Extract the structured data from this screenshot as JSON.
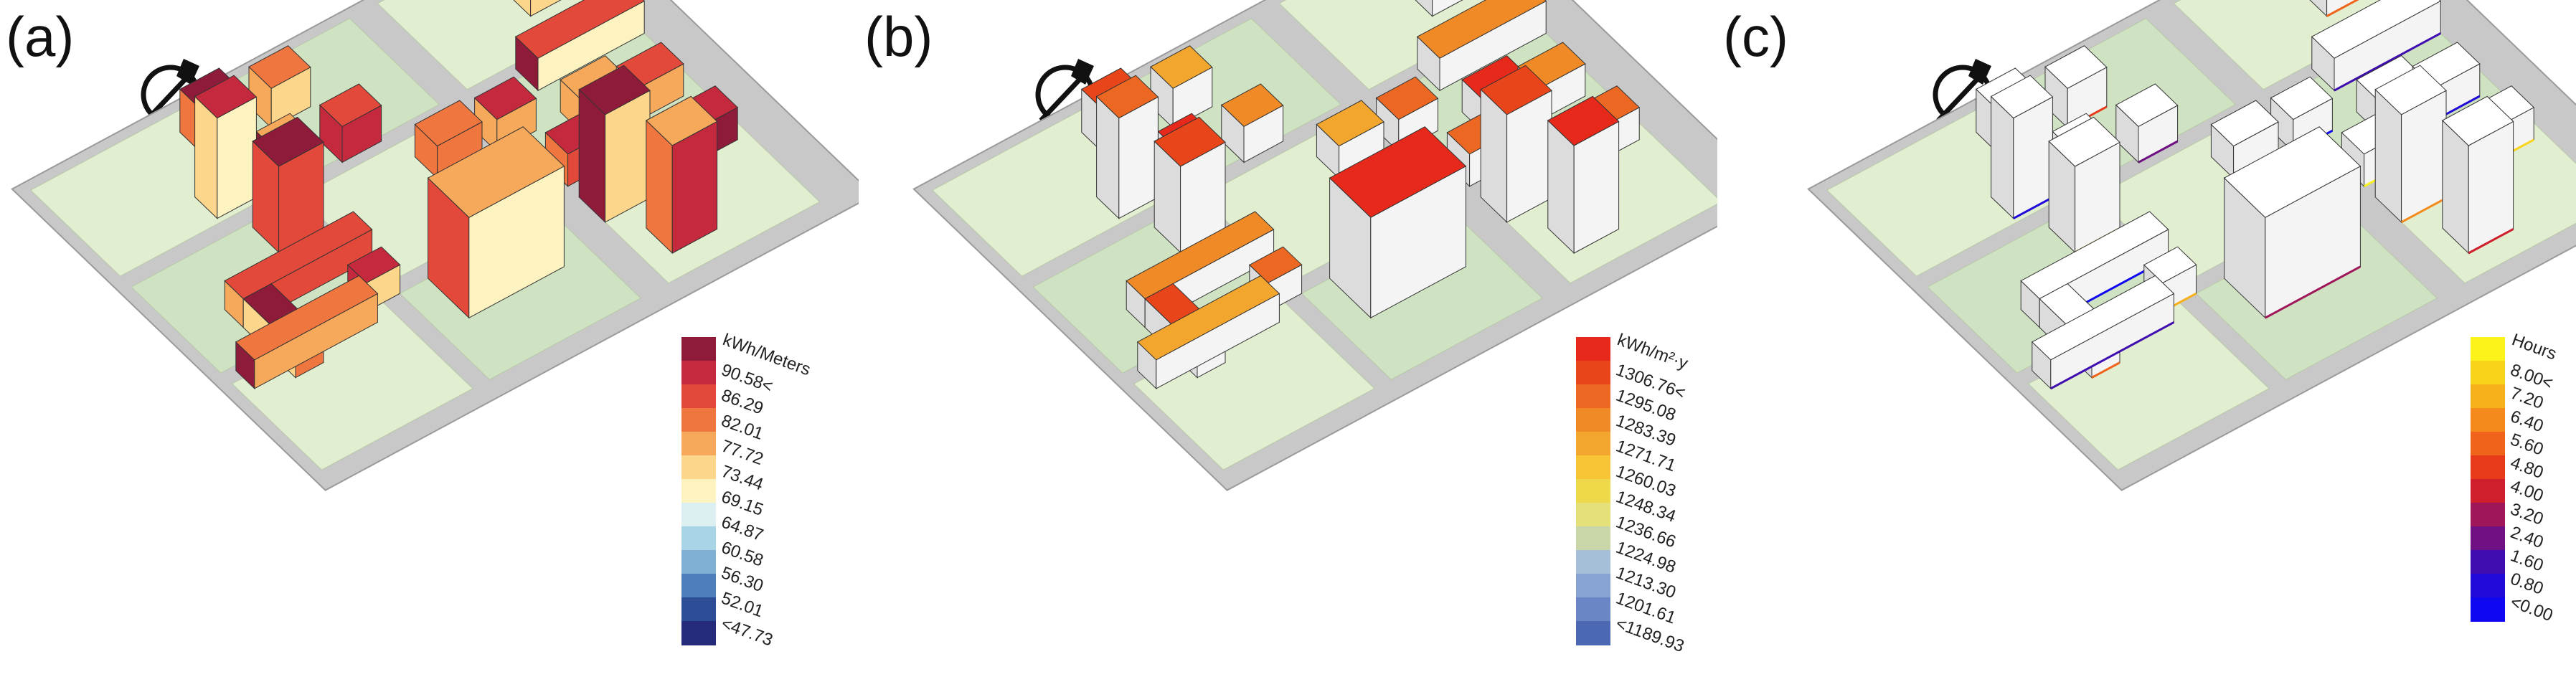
{
  "panels": [
    {
      "label": "(a)",
      "unit": "kWh/Meters",
      "legend": {
        "ticks": [
          "90.58<",
          "86.29",
          "82.01",
          "77.72",
          "73.44",
          "69.15",
          "64.87",
          "60.58",
          "56.30",
          "52.01",
          "<47.73"
        ],
        "colors": [
          "#8e1b3a",
          "#c5293d",
          "#e3493b",
          "#f0763f",
          "#f6a85b",
          "#fcd68a",
          "#fdf3c0",
          "#dceff1",
          "#a9d4e5",
          "#7fb0d3",
          "#4e7fbb",
          "#2e4d97",
          "#252b7a"
        ]
      }
    },
    {
      "label": "(b)",
      "unit": "kWh/m²·y",
      "legend": {
        "ticks": [
          "1306.76<",
          "1295.08",
          "1283.39",
          "1271.71",
          "1260.03",
          "1248.34",
          "1236.66",
          "1224.98",
          "1213.30",
          "1201.61",
          "<1189.93"
        ],
        "colors": [
          "#e6291a",
          "#e8451b",
          "#ec6721",
          "#f08a26",
          "#f3a62d",
          "#f6c434",
          "#efd84a",
          "#e6e07a",
          "#c9d7a8",
          "#a6bfd9",
          "#87a3d3",
          "#6a86c4",
          "#4c68b2"
        ]
      }
    },
    {
      "label": "(c)",
      "unit": "Hours",
      "legend": {
        "ticks": [
          "8.00<",
          "7.20",
          "6.40",
          "5.60",
          "4.80",
          "4.00",
          "3.20",
          "2.40",
          "1.60",
          "0.80",
          "<0.00"
        ],
        "colors": [
          "#fbf21a",
          "#f9d31a",
          "#f6b01a",
          "#f48a1b",
          "#f0631b",
          "#e73b1c",
          "#cf1e2c",
          "#a0165a",
          "#6f1182",
          "#400db0",
          "#1f0ad9",
          "#0e07f0"
        ]
      }
    }
  ],
  "scene": {
    "ground_color": "#c8c8c8",
    "block_color": "#e1eed0",
    "block_color_alt": "#cfe3c2",
    "wall_color": "#f4f4f4",
    "edge_color": "#333333"
  }
}
